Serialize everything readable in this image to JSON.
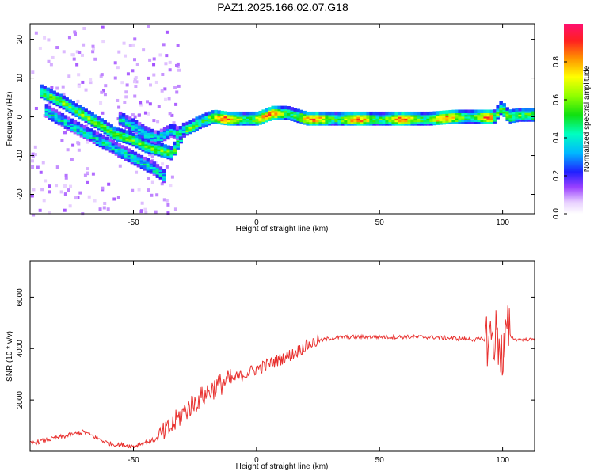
{
  "figure": {
    "title": "PAZ1.2025.166.02.07.G18"
  },
  "chart_data": [
    {
      "type": "heatmap",
      "name": "spectrogram",
      "xlabel": "Height of straight line (km)",
      "ylabel": "Frequency (Hz)",
      "xlim": [
        -92,
        113
      ],
      "ylim": [
        -25,
        24
      ],
      "xticks": [
        -50,
        0,
        50,
        100
      ],
      "yticks": [
        -20,
        -10,
        0,
        10,
        20
      ],
      "colorbar": {
        "label": "Normalized spectral amplitude",
        "range": [
          0,
          1
        ],
        "ticks": [
          0.0,
          0.2,
          0.4,
          0.6,
          0.8
        ]
      },
      "ridges": [
        {
          "x": [
            -88,
            -80,
            -72,
            -64,
            -58,
            -52,
            -46,
            -40,
            -35,
            -30,
            -24,
            -18,
            -12,
            -6,
            0,
            6,
            12,
            20,
            30,
            40,
            50,
            60,
            70,
            80,
            90,
            96,
            99,
            102,
            106,
            113
          ],
          "y": [
            7,
            4.5,
            1.5,
            -1.5,
            -4,
            -5,
            -7,
            -8,
            -9,
            -3,
            -1,
            0.5,
            0,
            0,
            0,
            1.5,
            1.5,
            0,
            0,
            0,
            0,
            0,
            0,
            0.5,
            0.5,
            0.5,
            3,
            0.5,
            1,
            1
          ]
        },
        {
          "x": [
            -86,
            -78,
            -72,
            -66,
            -60,
            -54,
            -48,
            -42,
            -38
          ],
          "y": [
            2,
            -1,
            -3,
            -5,
            -7,
            -9,
            -11,
            -13,
            -15
          ]
        },
        {
          "x": [
            -56,
            -50,
            -45,
            -41,
            -38,
            -35,
            -32,
            -29
          ],
          "y": [
            0,
            -2,
            -4,
            -5,
            -4,
            -3,
            -4,
            -2
          ]
        }
      ]
    },
    {
      "type": "line",
      "name": "snr",
      "xlabel": "Height of straight line (km)",
      "ylabel": "SNR (10 * v/v)",
      "xlim": [
        -92,
        113
      ],
      "ylim": [
        0,
        7400
      ],
      "xticks": [
        -50,
        0,
        50,
        100
      ],
      "yticks": [
        2000,
        4000,
        6000
      ],
      "color": "#e8312f",
      "trend": {
        "x": [
          -92,
          -80,
          -70,
          -60,
          -50,
          -40,
          -35,
          -30,
          -25,
          -20,
          -15,
          -10,
          -5,
          0,
          5,
          10,
          15,
          20,
          25,
          30,
          35,
          40,
          50,
          60,
          70,
          80,
          90,
          95,
          97,
          99,
          100,
          101,
          102,
          105,
          113
        ],
        "y": [
          300,
          550,
          750,
          300,
          200,
          500,
          900,
          1500,
          1900,
          2300,
          2600,
          2800,
          3000,
          3200,
          3400,
          3600,
          3800,
          4100,
          4300,
          4400,
          4450,
          4450,
          4450,
          4450,
          4450,
          4400,
          4350,
          4400,
          4500,
          4300,
          3300,
          4200,
          4600,
          4350,
          4350
        ]
      }
    }
  ]
}
